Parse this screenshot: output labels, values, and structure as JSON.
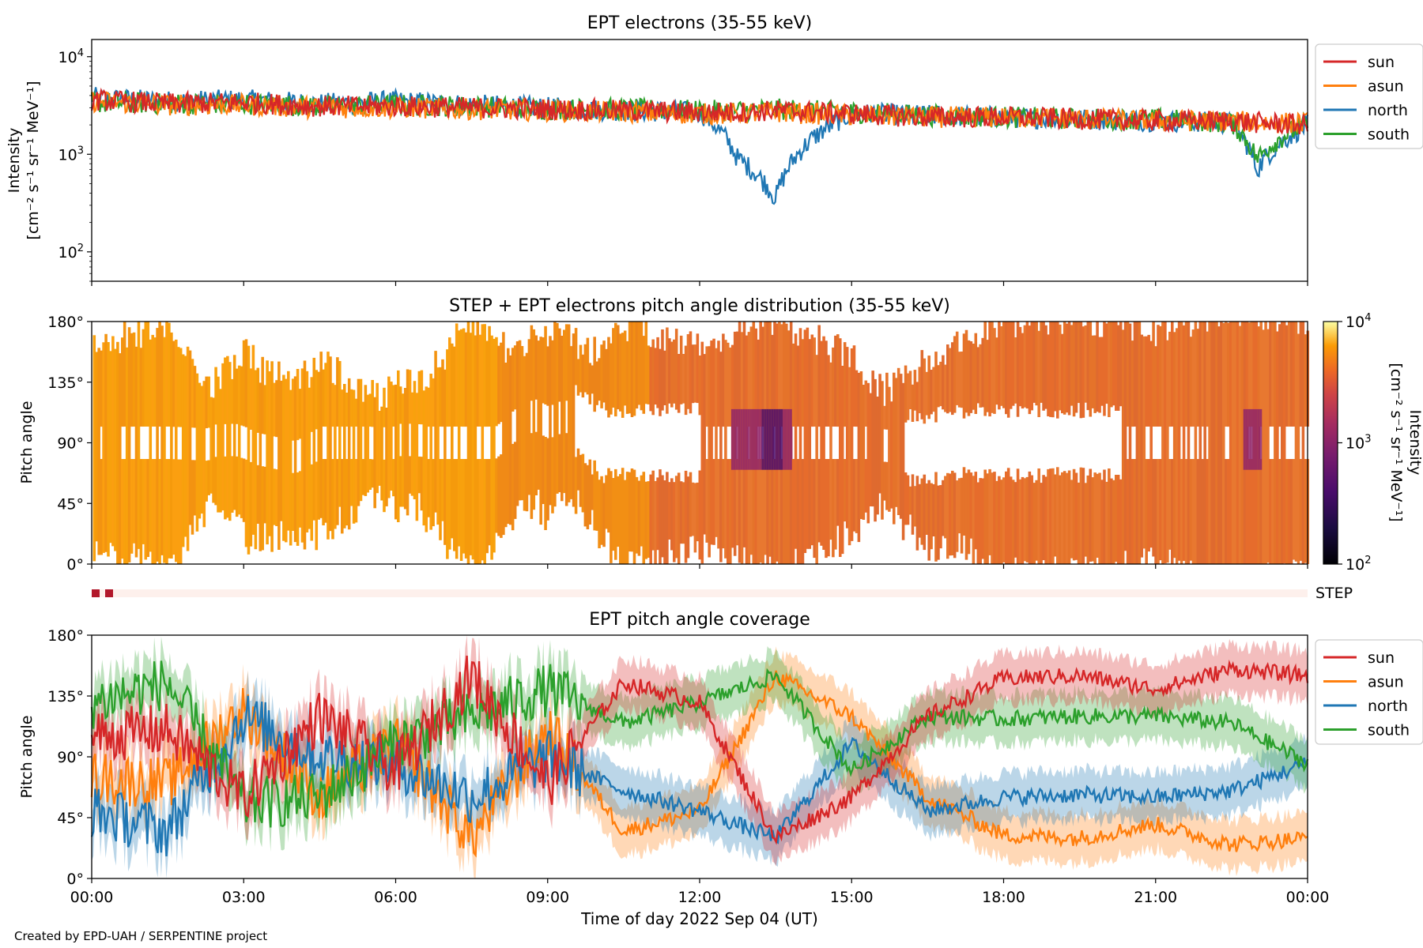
{
  "figure": {
    "xlabel": "Time of day 2022 Sep 04 (UT)",
    "credit": "Created by EPD-UAH / SERPENTINE project",
    "xticks": [
      "00:00",
      "03:00",
      "06:00",
      "09:00",
      "12:00",
      "15:00",
      "18:00",
      "21:00",
      "00:00"
    ],
    "xlim_hours": [
      0,
      24
    ]
  },
  "colors": {
    "sun": "#d62728",
    "asun": "#ff7f0e",
    "north": "#1f77b4",
    "south": "#2ca02c"
  },
  "panels": {
    "intensity": {
      "title": "EPT electrons (35-55 keV)",
      "ylabel_line1": "Intensity",
      "ylabel_line2": "[cm⁻² s⁻¹ sr⁻¹ MeV⁻¹]",
      "yticks": [
        {
          "base": "10",
          "exp": "4"
        },
        {
          "base": "10",
          "exp": "3"
        },
        {
          "base": "10",
          "exp": "2"
        }
      ],
      "legend": [
        "sun",
        "asun",
        "north",
        "south"
      ]
    },
    "pad": {
      "title": "STEP + EPT electrons pitch angle distribution (35-55 keV)",
      "ylabel": "Pitch angle",
      "yticks": [
        "180°",
        "135°",
        "90°",
        "45°",
        "0°"
      ],
      "colorbar_label_line1": "Intensity",
      "colorbar_label_line2": "[cm⁻² s⁻¹ sr⁻¹ MeV⁻¹]",
      "colorbar_ticks": [
        {
          "base": "10",
          "exp": "4"
        },
        {
          "base": "10",
          "exp": "3"
        },
        {
          "base": "10",
          "exp": "2"
        }
      ]
    },
    "step": {
      "label": "STEP"
    },
    "coverage": {
      "title": "EPT pitch angle coverage",
      "ylabel": "Pitch angle",
      "yticks": [
        "180°",
        "135°",
        "90°",
        "45°",
        "0°"
      ],
      "legend": [
        "sun",
        "asun",
        "north",
        "south"
      ]
    }
  },
  "chart_data": [
    {
      "type": "line",
      "title": "EPT electrons (35-55 keV)",
      "xlabel": "",
      "ylabel": "Intensity [cm⁻² s⁻¹ sr⁻¹ MeV⁻¹]",
      "yscale": "log",
      "ylim": [
        50,
        15000
      ],
      "x": [
        "00:00",
        "01:30",
        "03:00",
        "04:30",
        "06:00",
        "07:30",
        "09:00",
        "10:30",
        "12:00",
        "12:45",
        "13:30",
        "15:00",
        "16:30",
        "18:00",
        "19:30",
        "21:00",
        "22:30",
        "23:00",
        "24:00"
      ],
      "series": [
        {
          "name": "sun",
          "values": [
            3600,
            3300,
            3400,
            3100,
            3100,
            3000,
            2900,
            2800,
            2700,
            2700,
            2800,
            2600,
            2400,
            2400,
            2300,
            2200,
            2200,
            2100,
            2000
          ]
        },
        {
          "name": "asun",
          "values": [
            3500,
            3200,
            3200,
            3000,
            3000,
            2900,
            2800,
            2700,
            2600,
            2600,
            2700,
            2500,
            2400,
            2400,
            2300,
            2200,
            2200,
            2100,
            2100
          ]
        },
        {
          "name": "north",
          "values": [
            3800,
            3500,
            3600,
            3300,
            3500,
            3200,
            3000,
            2800,
            2700,
            900,
            350,
            2600,
            2500,
            2400,
            2300,
            2200,
            2100,
            700,
            2000
          ]
        },
        {
          "name": "south",
          "values": [
            3400,
            3300,
            3300,
            3100,
            3200,
            3100,
            2900,
            2900,
            2800,
            2800,
            2900,
            2700,
            2500,
            2400,
            2300,
            2300,
            2100,
            900,
            2100
          ]
        }
      ],
      "legend": "upper-right-outside"
    },
    {
      "type": "heatmap",
      "title": "STEP + EPT electrons pitch angle distribution (35-55 keV)",
      "ylabel": "Pitch angle",
      "ylim": [
        0,
        180
      ],
      "colorbar": {
        "label": "Intensity [cm⁻² s⁻¹ sr⁻¹ MeV⁻¹]",
        "scale": "log",
        "range": [
          100,
          10000
        ],
        "colormap": "inferno"
      }
    },
    {
      "type": "line",
      "title": "EPT pitch angle coverage",
      "ylabel": "Pitch angle",
      "ylim": [
        0,
        180
      ],
      "x": [
        "00:00",
        "01:30",
        "03:00",
        "04:30",
        "06:00",
        "07:30",
        "09:00",
        "10:30",
        "12:00",
        "13:30",
        "15:00",
        "16:30",
        "18:00",
        "19:30",
        "21:00",
        "22:30",
        "24:00"
      ],
      "series": [
        {
          "name": "sun",
          "values": [
            105,
            110,
            60,
            120,
            80,
            150,
            70,
            145,
            130,
            30,
            60,
            120,
            148,
            150,
            140,
            155,
            150
          ]
        },
        {
          "name": "asun",
          "values": [
            75,
            70,
            125,
            60,
            100,
            30,
            110,
            35,
            50,
            150,
            120,
            60,
            32,
            30,
            40,
            25,
            30
          ]
        },
        {
          "name": "north",
          "values": [
            50,
            35,
            120,
            90,
            85,
            60,
            90,
            65,
            50,
            30,
            100,
            50,
            60,
            62,
            60,
            65,
            85
          ]
        },
        {
          "name": "south",
          "values": [
            130,
            145,
            55,
            60,
            100,
            120,
            140,
            115,
            130,
            150,
            80,
            120,
            118,
            120,
            120,
            115,
            85
          ]
        }
      ],
      "legend": "upper-right-outside"
    }
  ]
}
